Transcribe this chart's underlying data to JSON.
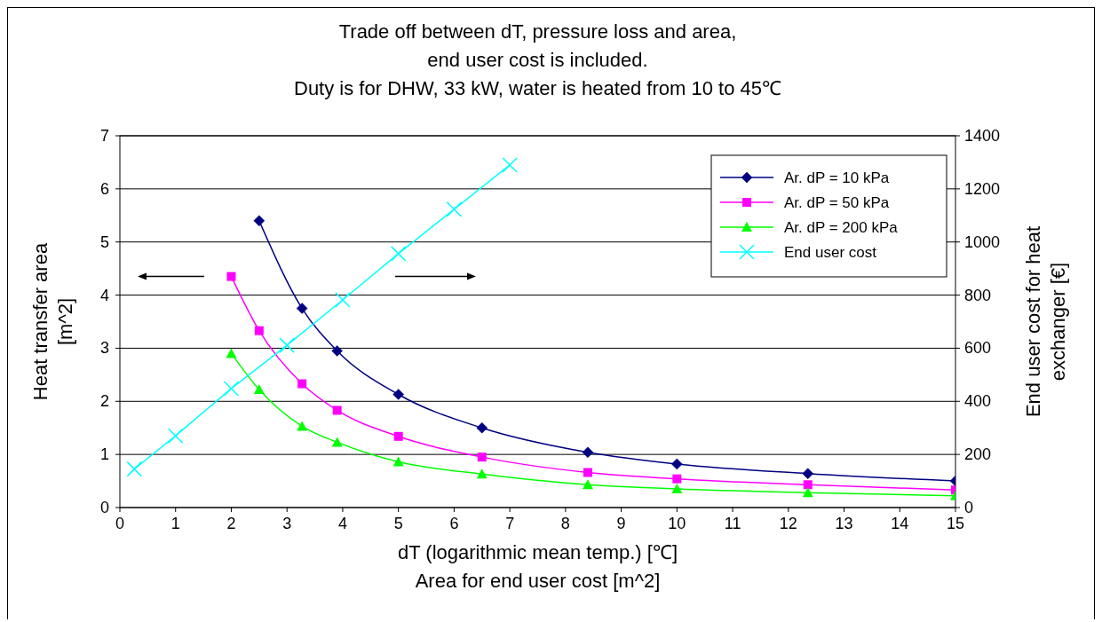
{
  "chart_data": {
    "type": "line",
    "title": "Trade off between dT, pressure loss and area,\nend user cost is included.\nDuty is for DHW, 33 kW, water is heated from 10 to 45℃",
    "xlabel": "dT (logarithmic mean temp.) [℃]\nArea for end user cost [m^2]",
    "ylabel": "Heat transfer area\n[m^2]",
    "y2label": "End user cost for heat\nexchanger [€]",
    "xlim": [
      0,
      15
    ],
    "xticks": [
      0,
      1,
      2,
      3,
      4,
      5,
      6,
      7,
      8,
      9,
      10,
      11,
      12,
      13,
      14,
      15
    ],
    "ylim": [
      0,
      7
    ],
    "yticks": [
      0,
      1,
      2,
      3,
      4,
      5,
      6,
      7
    ],
    "y2lim": [
      0,
      1400
    ],
    "y2ticks": [
      0,
      200,
      400,
      600,
      800,
      1000,
      1200,
      1400
    ],
    "grid": "y",
    "legend": "top right",
    "series": [
      {
        "name": "Ar. dP = 10 kPa",
        "color": "#000080",
        "marker": "diamond",
        "x": [
          2.5,
          3.27,
          3.9,
          5,
          6.5,
          8.4,
          10,
          12.35,
          15
        ],
        "values": [
          5.4,
          3.75,
          2.95,
          2.13,
          1.5,
          1.04,
          0.82,
          0.64,
          0.5
        ]
      },
      {
        "name": "Ar. dP = 50 kPa",
        "color": "#ff00ff",
        "marker": "square",
        "x": [
          2,
          2.5,
          3.27,
          3.9,
          5,
          6.5,
          8.4,
          10,
          12.35,
          15
        ],
        "values": [
          4.35,
          3.33,
          2.33,
          1.83,
          1.34,
          0.95,
          0.66,
          0.54,
          0.43,
          0.33
        ]
      },
      {
        "name": "Ar. dP = 200 kPa",
        "color": "#00ff00",
        "marker": "triangle",
        "x": [
          2,
          2.5,
          3.27,
          3.9,
          5,
          6.5,
          8.4,
          10,
          12.35,
          15
        ],
        "values": [
          2.9,
          2.22,
          1.53,
          1.23,
          0.86,
          0.63,
          0.43,
          0.35,
          0.28,
          0.22
        ]
      },
      {
        "name": "End user cost",
        "color": "#00ffff",
        "marker": "cross",
        "axis": "y2",
        "x": [
          0.26,
          1,
          2,
          3,
          4,
          5,
          6,
          7
        ],
        "values": [
          145,
          270,
          448,
          611,
          782,
          956,
          1123,
          1290
        ]
      }
    ]
  }
}
